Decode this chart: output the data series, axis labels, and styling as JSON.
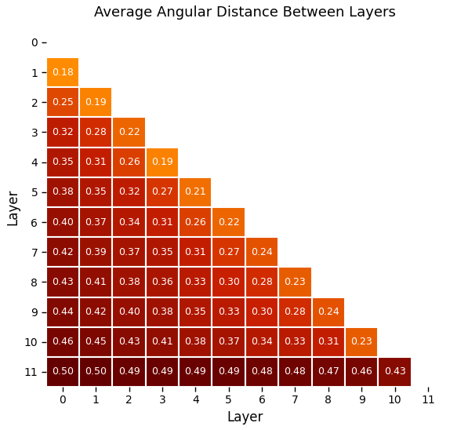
{
  "title": "Average Angular Distance Between Layers",
  "xlabel": "Layer",
  "ylabel": "Layer",
  "n": 12,
  "matrix": [
    [
      null,
      null,
      null,
      null,
      null,
      null,
      null,
      null,
      null,
      null,
      null,
      null
    ],
    [
      0.18,
      null,
      null,
      null,
      null,
      null,
      null,
      null,
      null,
      null,
      null,
      null
    ],
    [
      0.25,
      0.19,
      null,
      null,
      null,
      null,
      null,
      null,
      null,
      null,
      null,
      null
    ],
    [
      0.32,
      0.28,
      0.22,
      null,
      null,
      null,
      null,
      null,
      null,
      null,
      null,
      null
    ],
    [
      0.35,
      0.31,
      0.26,
      0.19,
      null,
      null,
      null,
      null,
      null,
      null,
      null,
      null
    ],
    [
      0.38,
      0.35,
      0.32,
      0.27,
      0.21,
      null,
      null,
      null,
      null,
      null,
      null,
      null
    ],
    [
      0.4,
      0.37,
      0.34,
      0.31,
      0.26,
      0.22,
      null,
      null,
      null,
      null,
      null,
      null
    ],
    [
      0.42,
      0.39,
      0.37,
      0.35,
      0.31,
      0.27,
      0.24,
      null,
      null,
      null,
      null,
      null
    ],
    [
      0.43,
      0.41,
      0.38,
      0.36,
      0.33,
      0.3,
      0.28,
      0.23,
      null,
      null,
      null,
      null
    ],
    [
      0.44,
      0.42,
      0.4,
      0.38,
      0.35,
      0.33,
      0.3,
      0.28,
      0.24,
      null,
      null,
      null
    ],
    [
      0.46,
      0.45,
      0.43,
      0.41,
      0.38,
      0.37,
      0.34,
      0.33,
      0.31,
      0.23,
      null,
      null
    ],
    [
      0.5,
      0.5,
      0.49,
      0.49,
      0.49,
      0.49,
      0.48,
      0.48,
      0.47,
      0.46,
      0.43,
      null
    ]
  ],
  "vmin": 0.18,
  "vmax": 0.5,
  "text_color": "white",
  "text_fontsize": 9,
  "background_color": "white",
  "title_fontsize": 13,
  "axis_label_fontsize": 12,
  "tick_fontsize": 10
}
